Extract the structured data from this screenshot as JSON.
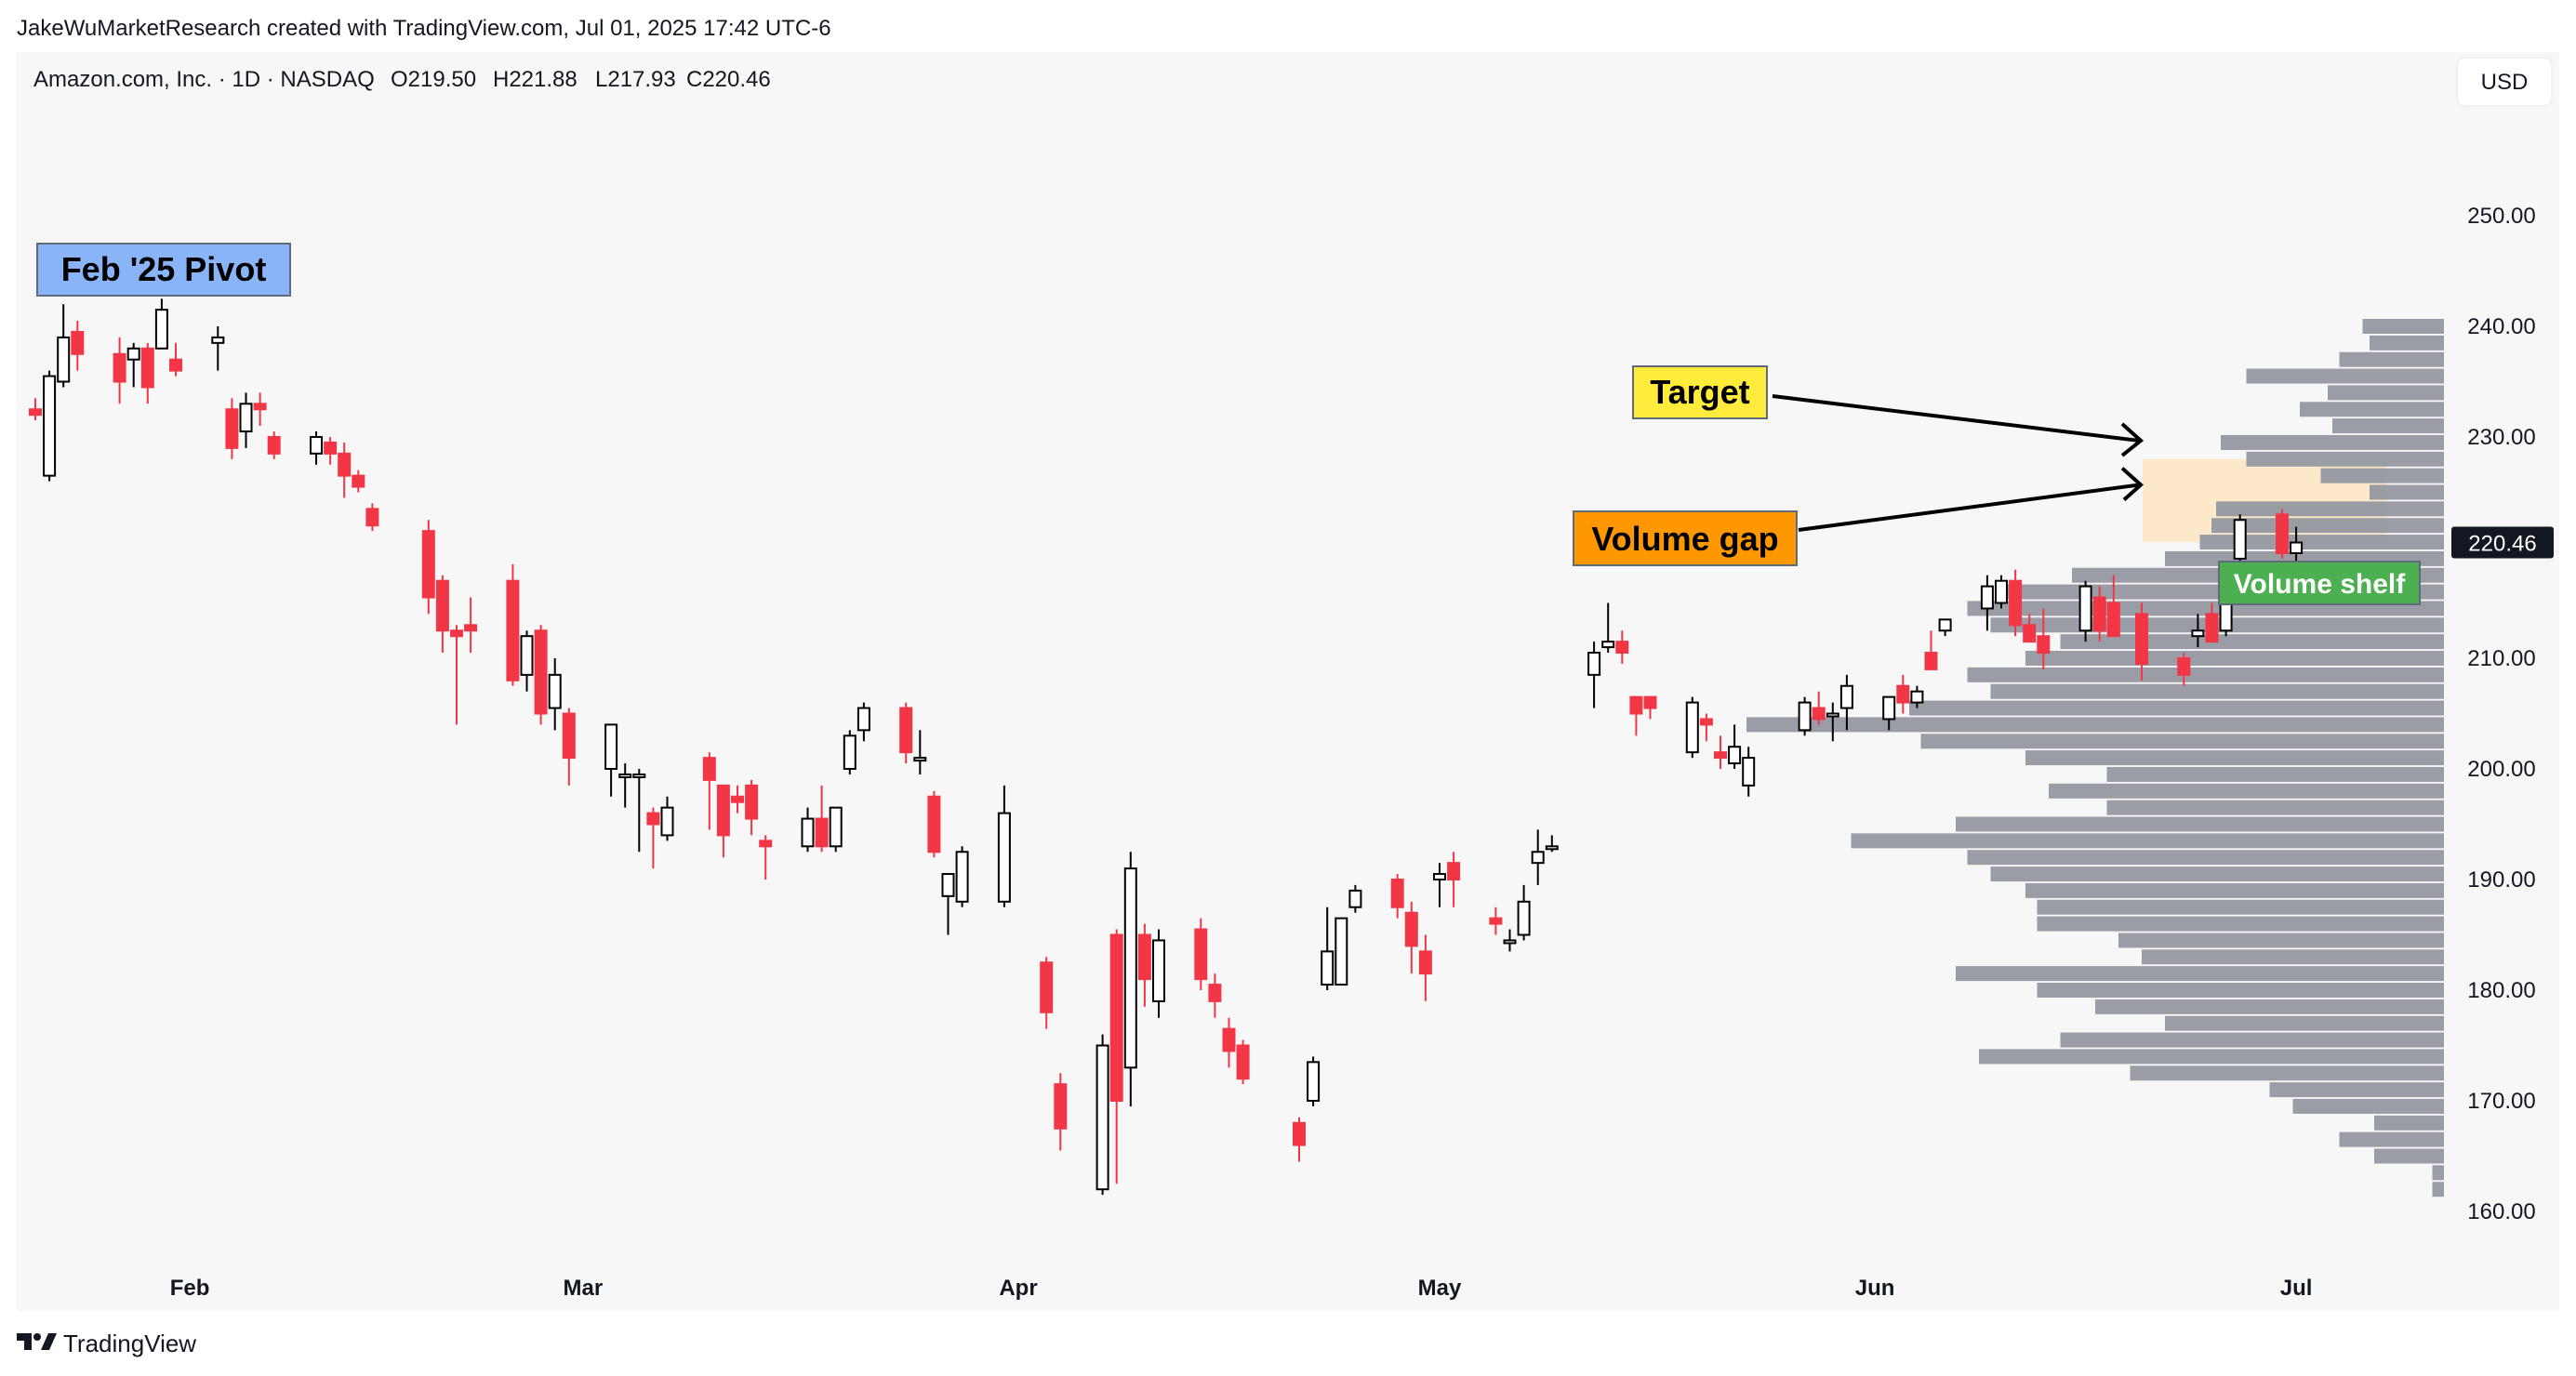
{
  "header": {
    "attribution": "JakeWuMarketResearch created with TradingView.com, Jul 01, 2025 17:42 UTC-6"
  },
  "legend": {
    "symbol_info": "Amazon.com, Inc. · 1D · NASDAQ",
    "open": "O219.50",
    "high": "H221.88",
    "low": "L217.93",
    "close": "C220.46"
  },
  "currency_button": "USD",
  "footer": {
    "brand": "TradingView"
  },
  "colors": {
    "up": "#000000",
    "down": "#f23645",
    "up_fill": "#ffffff",
    "volume_profile": "#9598a1",
    "pivot_label_bg": "#8ab4f8",
    "target_label_bg": "#ffeb3b",
    "gap_label_bg": "#ff9800",
    "shelf_label_bg": "#4caf50",
    "gap_zone": "#fde6c4",
    "price_tag_bg": "#131722"
  },
  "chart_data": {
    "type": "candlestick",
    "ticker": "AMZN",
    "y_axis": {
      "ticks": [
        160,
        170,
        180,
        190,
        200,
        210,
        220,
        230,
        240,
        250
      ],
      "tick_labels": [
        "160.00",
        "170.00",
        "180.00",
        "190.00",
        "200.00",
        "210.00",
        "220.00",
        "230.00",
        "240.00",
        "250.00"
      ],
      "range": [
        156,
        252
      ],
      "current_price": 220.46,
      "current_price_label": "220.46"
    },
    "x_axis": {
      "labels": [
        {
          "text": "Feb",
          "date": "2025-02-01"
        },
        {
          "text": "Mar",
          "date": "2025-03-01"
        },
        {
          "text": "Apr",
          "date": "2025-04-01"
        },
        {
          "text": "May",
          "date": "2025-05-01"
        },
        {
          "text": "Jun",
          "date": "2025-06-01"
        },
        {
          "text": "Jul",
          "date": "2025-07-01"
        }
      ]
    },
    "candles": [
      {
        "date": "2025-01-21",
        "o": 232.5,
        "h": 233.5,
        "l": 231.5,
        "c": 232.0
      },
      {
        "date": "2025-01-22",
        "o": 226.5,
        "h": 236.0,
        "l": 226.0,
        "c": 235.5
      },
      {
        "date": "2025-01-23",
        "o": 235.0,
        "h": 242.0,
        "l": 234.5,
        "c": 239.0
      },
      {
        "date": "2025-01-24",
        "o": 239.5,
        "h": 240.5,
        "l": 236.0,
        "c": 237.5
      },
      {
        "date": "2025-01-27",
        "o": 237.5,
        "h": 239.0,
        "l": 233.0,
        "c": 235.0
      },
      {
        "date": "2025-01-28",
        "o": 237.0,
        "h": 238.5,
        "l": 234.5,
        "c": 238.0
      },
      {
        "date": "2025-01-29",
        "o": 238.0,
        "h": 238.5,
        "l": 233.0,
        "c": 234.5
      },
      {
        "date": "2025-01-30",
        "o": 238.0,
        "h": 242.5,
        "l": 238.0,
        "c": 241.5
      },
      {
        "date": "2025-01-31",
        "o": 237.0,
        "h": 238.5,
        "l": 235.5,
        "c": 236.0
      },
      {
        "date": "2025-02-03",
        "o": 238.5,
        "h": 240.0,
        "l": 236.0,
        "c": 239.0
      },
      {
        "date": "2025-02-04",
        "o": 232.5,
        "h": 233.5,
        "l": 228.0,
        "c": 229.0
      },
      {
        "date": "2025-02-05",
        "o": 230.5,
        "h": 234.0,
        "l": 229.0,
        "c": 233.0
      },
      {
        "date": "2025-02-06",
        "o": 233.0,
        "h": 234.0,
        "l": 231.0,
        "c": 232.5
      },
      {
        "date": "2025-02-07",
        "o": 230.0,
        "h": 230.5,
        "l": 228.0,
        "c": 228.5
      },
      {
        "date": "2025-02-10",
        "o": 228.5,
        "h": 230.5,
        "l": 227.5,
        "c": 230.0
      },
      {
        "date": "2025-02-11",
        "o": 229.5,
        "h": 230.0,
        "l": 227.5,
        "c": 228.5
      },
      {
        "date": "2025-02-12",
        "o": 228.5,
        "h": 229.5,
        "l": 224.5,
        "c": 226.5
      },
      {
        "date": "2025-02-13",
        "o": 226.5,
        "h": 227.0,
        "l": 225.0,
        "c": 225.5
      },
      {
        "date": "2025-02-14",
        "o": 223.5,
        "h": 224.0,
        "l": 221.5,
        "c": 222.0
      },
      {
        "date": "2025-02-18",
        "o": 221.5,
        "h": 222.5,
        "l": 214.0,
        "c": 215.5
      },
      {
        "date": "2025-02-19",
        "o": 217.0,
        "h": 217.5,
        "l": 210.5,
        "c": 212.5
      },
      {
        "date": "2025-02-20",
        "o": 212.5,
        "h": 213.0,
        "l": 204.0,
        "c": 212.0
      },
      {
        "date": "2025-02-21",
        "o": 213.0,
        "h": 215.5,
        "l": 210.5,
        "c": 212.5
      },
      {
        "date": "2025-02-24",
        "o": 217.0,
        "h": 218.5,
        "l": 207.5,
        "c": 208.0
      },
      {
        "date": "2025-02-25",
        "o": 208.5,
        "h": 212.5,
        "l": 207.0,
        "c": 212.0
      },
      {
        "date": "2025-02-26",
        "o": 212.5,
        "h": 213.0,
        "l": 204.0,
        "c": 205.0
      },
      {
        "date": "2025-02-27",
        "o": 205.5,
        "h": 210.0,
        "l": 203.5,
        "c": 208.5
      },
      {
        "date": "2025-02-28",
        "o": 205.0,
        "h": 205.5,
        "l": 198.5,
        "c": 201.0
      },
      {
        "date": "2025-03-03",
        "o": 200.0,
        "h": 204.0,
        "l": 197.5,
        "c": 204.0
      },
      {
        "date": "2025-03-04",
        "o": 199.5,
        "h": 200.5,
        "l": 196.5,
        "c": 199.5
      },
      {
        "date": "2025-03-05",
        "o": 199.5,
        "h": 200.0,
        "l": 192.5,
        "c": 199.5
      },
      {
        "date": "2025-03-06",
        "o": 196.0,
        "h": 196.5,
        "l": 191.0,
        "c": 195.0
      },
      {
        "date": "2025-03-07",
        "o": 194.0,
        "h": 197.5,
        "l": 193.5,
        "c": 196.5
      },
      {
        "date": "2025-03-10",
        "o": 201.0,
        "h": 201.5,
        "l": 194.5,
        "c": 199.0
      },
      {
        "date": "2025-03-11",
        "o": 198.5,
        "h": 198.5,
        "l": 192.0,
        "c": 194.0
      },
      {
        "date": "2025-03-12",
        "o": 197.5,
        "h": 198.5,
        "l": 196.0,
        "c": 197.0
      },
      {
        "date": "2025-03-13",
        "o": 198.5,
        "h": 199.0,
        "l": 194.0,
        "c": 195.5
      },
      {
        "date": "2025-03-14",
        "o": 193.5,
        "h": 194.0,
        "l": 190.0,
        "c": 193.0
      },
      {
        "date": "2025-03-17",
        "o": 193.0,
        "h": 196.5,
        "l": 192.5,
        "c": 195.5
      },
      {
        "date": "2025-03-18",
        "o": 195.5,
        "h": 198.5,
        "l": 192.5,
        "c": 193.0
      },
      {
        "date": "2025-03-19",
        "o": 193.0,
        "h": 196.5,
        "l": 192.5,
        "c": 196.5
      },
      {
        "date": "2025-03-20",
        "o": 200.0,
        "h": 203.5,
        "l": 199.5,
        "c": 203.0
      },
      {
        "date": "2025-03-21",
        "o": 203.5,
        "h": 206.0,
        "l": 202.5,
        "c": 205.5
      },
      {
        "date": "2025-03-24",
        "o": 205.5,
        "h": 206.0,
        "l": 200.5,
        "c": 201.5
      },
      {
        "date": "2025-03-25",
        "o": 201.0,
        "h": 203.5,
        "l": 199.5,
        "c": 201.0
      },
      {
        "date": "2025-03-26",
        "o": 197.5,
        "h": 198.0,
        "l": 192.0,
        "c": 192.5
      },
      {
        "date": "2025-03-27",
        "o": 188.5,
        "h": 190.0,
        "l": 185.0,
        "c": 190.5
      },
      {
        "date": "2025-03-28",
        "o": 188.0,
        "h": 193.0,
        "l": 187.5,
        "c": 192.5
      },
      {
        "date": "2025-03-31",
        "o": 188.0,
        "h": 198.5,
        "l": 187.5,
        "c": 196.0
      },
      {
        "date": "2025-04-03",
        "o": 182.5,
        "h": 183.0,
        "l": 176.5,
        "c": 178.0
      },
      {
        "date": "2025-04-04",
        "o": 171.5,
        "h": 172.5,
        "l": 165.5,
        "c": 167.5
      },
      {
        "date": "2025-04-07",
        "o": 162.0,
        "h": 176.0,
        "l": 161.5,
        "c": 175.0
      },
      {
        "date": "2025-04-08",
        "o": 185.0,
        "h": 185.5,
        "l": 162.5,
        "c": 170.0
      },
      {
        "date": "2025-04-09",
        "o": 173.0,
        "h": 192.5,
        "l": 169.5,
        "c": 191.0
      },
      {
        "date": "2025-04-10",
        "o": 185.0,
        "h": 186.0,
        "l": 178.5,
        "c": 181.0
      },
      {
        "date": "2025-04-11",
        "o": 179.0,
        "h": 185.5,
        "l": 177.5,
        "c": 184.5
      },
      {
        "date": "2025-04-14",
        "o": 185.5,
        "h": 186.5,
        "l": 180.0,
        "c": 181.0
      },
      {
        "date": "2025-04-15",
        "o": 180.5,
        "h": 181.5,
        "l": 177.5,
        "c": 179.0
      },
      {
        "date": "2025-04-16",
        "o": 176.5,
        "h": 177.5,
        "l": 173.0,
        "c": 174.5
      },
      {
        "date": "2025-04-17",
        "o": 175.0,
        "h": 175.5,
        "l": 171.5,
        "c": 172.0
      },
      {
        "date": "2025-04-21",
        "o": 168.0,
        "h": 168.5,
        "l": 164.5,
        "c": 166.0
      },
      {
        "date": "2025-04-22",
        "o": 170.0,
        "h": 174.0,
        "l": 169.5,
        "c": 173.5
      },
      {
        "date": "2025-04-23",
        "o": 180.5,
        "h": 187.5,
        "l": 180.0,
        "c": 183.5
      },
      {
        "date": "2025-04-24",
        "o": 180.5,
        "h": 186.5,
        "l": 180.5,
        "c": 186.5
      },
      {
        "date": "2025-04-25",
        "o": 187.5,
        "h": 189.5,
        "l": 187.0,
        "c": 189.0
      },
      {
        "date": "2025-04-28",
        "o": 190.0,
        "h": 190.5,
        "l": 186.5,
        "c": 187.5
      },
      {
        "date": "2025-04-29",
        "o": 187.0,
        "h": 188.0,
        "l": 181.5,
        "c": 184.0
      },
      {
        "date": "2025-04-30",
        "o": 183.5,
        "h": 185.0,
        "l": 179.0,
        "c": 181.5
      },
      {
        "date": "2025-05-01",
        "o": 190.0,
        "h": 191.5,
        "l": 187.5,
        "c": 190.5
      },
      {
        "date": "2025-05-02",
        "o": 191.5,
        "h": 192.5,
        "l": 187.5,
        "c": 190.0
      },
      {
        "date": "2025-05-05",
        "o": 186.5,
        "h": 187.5,
        "l": 185.0,
        "c": 186.0
      },
      {
        "date": "2025-05-06",
        "o": 184.5,
        "h": 185.5,
        "l": 183.5,
        "c": 184.5
      },
      {
        "date": "2025-05-07",
        "o": 185.0,
        "h": 189.5,
        "l": 184.5,
        "c": 188.0
      },
      {
        "date": "2025-05-08",
        "o": 191.5,
        "h": 194.5,
        "l": 189.5,
        "c": 192.5
      },
      {
        "date": "2025-05-09",
        "o": 193.0,
        "h": 194.0,
        "l": 192.5,
        "c": 193.0
      },
      {
        "date": "2025-05-12",
        "o": 208.5,
        "h": 211.5,
        "l": 205.5,
        "c": 210.5
      },
      {
        "date": "2025-05-13",
        "o": 211.0,
        "h": 215.0,
        "l": 210.5,
        "c": 211.5
      },
      {
        "date": "2025-05-14",
        "o": 211.5,
        "h": 212.5,
        "l": 209.5,
        "c": 210.5
      },
      {
        "date": "2025-05-15",
        "o": 206.5,
        "h": 206.5,
        "l": 203.0,
        "c": 205.0
      },
      {
        "date": "2025-05-16",
        "o": 206.5,
        "h": 206.5,
        "l": 204.5,
        "c": 205.5
      },
      {
        "date": "2025-05-19",
        "o": 201.5,
        "h": 206.5,
        "l": 201.0,
        "c": 206.0
      },
      {
        "date": "2025-05-20",
        "o": 204.5,
        "h": 205.0,
        "l": 202.5,
        "c": 204.0
      },
      {
        "date": "2025-05-21",
        "o": 201.5,
        "h": 203.0,
        "l": 200.0,
        "c": 201.0
      },
      {
        "date": "2025-05-22",
        "o": 200.5,
        "h": 204.0,
        "l": 200.0,
        "c": 202.0
      },
      {
        "date": "2025-05-23",
        "o": 198.5,
        "h": 202.0,
        "l": 197.5,
        "c": 201.0
      },
      {
        "date": "2025-05-27",
        "o": 203.5,
        "h": 206.5,
        "l": 203.0,
        "c": 206.0
      },
      {
        "date": "2025-05-28",
        "o": 205.5,
        "h": 207.0,
        "l": 204.0,
        "c": 204.5
      },
      {
        "date": "2025-05-29",
        "o": 205.0,
        "h": 206.0,
        "l": 202.5,
        "c": 205.0
      },
      {
        "date": "2025-05-30",
        "o": 205.5,
        "h": 208.5,
        "l": 203.5,
        "c": 207.5
      },
      {
        "date": "2025-06-02",
        "o": 204.5,
        "h": 206.5,
        "l": 203.5,
        "c": 206.5
      },
      {
        "date": "2025-06-03",
        "o": 207.5,
        "h": 208.5,
        "l": 205.0,
        "c": 206.0
      },
      {
        "date": "2025-06-04",
        "o": 206.0,
        "h": 207.5,
        "l": 205.5,
        "c": 207.0
      },
      {
        "date": "2025-06-05",
        "o": 210.5,
        "h": 212.5,
        "l": 209.0,
        "c": 209.0
      },
      {
        "date": "2025-06-06",
        "o": 212.5,
        "h": 213.5,
        "l": 212.0,
        "c": 213.5
      },
      {
        "date": "2025-06-09",
        "o": 214.5,
        "h": 217.5,
        "l": 212.5,
        "c": 216.5
      },
      {
        "date": "2025-06-10",
        "o": 215.0,
        "h": 217.5,
        "l": 214.5,
        "c": 217.0
      },
      {
        "date": "2025-06-11",
        "o": 217.0,
        "h": 218.0,
        "l": 212.0,
        "c": 213.0
      },
      {
        "date": "2025-06-12",
        "o": 213.0,
        "h": 214.0,
        "l": 211.5,
        "c": 211.5
      },
      {
        "date": "2025-06-13",
        "o": 212.0,
        "h": 214.5,
        "l": 209.0,
        "c": 210.5
      },
      {
        "date": "2025-06-16",
        "o": 212.5,
        "h": 217.0,
        "l": 211.5,
        "c": 216.5
      },
      {
        "date": "2025-06-17",
        "o": 215.5,
        "h": 216.5,
        "l": 211.5,
        "c": 212.5
      },
      {
        "date": "2025-06-18",
        "o": 215.0,
        "h": 217.5,
        "l": 212.0,
        "c": 212.0
      },
      {
        "date": "2025-06-20",
        "o": 214.0,
        "h": 215.0,
        "l": 208.0,
        "c": 209.5
      },
      {
        "date": "2025-06-23",
        "o": 210.0,
        "h": 210.5,
        "l": 207.5,
        "c": 208.5
      },
      {
        "date": "2025-06-24",
        "o": 212.0,
        "h": 214.0,
        "l": 211.0,
        "c": 212.5
      },
      {
        "date": "2025-06-25",
        "o": 214.0,
        "h": 215.0,
        "l": 211.5,
        "c": 211.5
      },
      {
        "date": "2025-06-26",
        "o": 212.5,
        "h": 217.5,
        "l": 212.0,
        "c": 217.0
      },
      {
        "date": "2025-06-27",
        "o": 219.0,
        "h": 223.0,
        "l": 216.5,
        "c": 222.5
      },
      {
        "date": "2025-06-30",
        "o": 223.0,
        "h": 223.5,
        "l": 219.0,
        "c": 219.5
      },
      {
        "date": "2025-07-01",
        "o": 219.5,
        "h": 221.88,
        "l": 217.93,
        "c": 220.46
      }
    ],
    "volume_profile": [
      {
        "price": 240,
        "rel": 0.35
      },
      {
        "price": 238.5,
        "rel": 0.32
      },
      {
        "price": 237,
        "rel": 0.45
      },
      {
        "price": 235.5,
        "rel": 0.85
      },
      {
        "price": 234,
        "rel": 0.5
      },
      {
        "price": 232.5,
        "rel": 0.62
      },
      {
        "price": 231,
        "rel": 0.48
      },
      {
        "price": 229.5,
        "rel": 0.96
      },
      {
        "price": 228,
        "rel": 0.85
      },
      {
        "price": 226.5,
        "rel": 0.53
      },
      {
        "price": 225,
        "rel": 0.32
      },
      {
        "price": 223.5,
        "rel": 0.98
      },
      {
        "price": 222,
        "rel": 1.0
      },
      {
        "price": 220.5,
        "rel": 1.05
      },
      {
        "price": 219,
        "rel": 1.2
      },
      {
        "price": 217.5,
        "rel": 1.6
      },
      {
        "price": 216,
        "rel": 1.9
      },
      {
        "price": 214.5,
        "rel": 2.05
      },
      {
        "price": 213,
        "rel": 1.95
      },
      {
        "price": 211.5,
        "rel": 1.65
      },
      {
        "price": 210,
        "rel": 1.8
      },
      {
        "price": 208.5,
        "rel": 2.05
      },
      {
        "price": 207,
        "rel": 1.95
      },
      {
        "price": 205.5,
        "rel": 2.3
      },
      {
        "price": 204,
        "rel": 3.0
      },
      {
        "price": 202.5,
        "rel": 2.25
      },
      {
        "price": 201,
        "rel": 1.8
      },
      {
        "price": 199.5,
        "rel": 1.45
      },
      {
        "price": 198,
        "rel": 1.7
      },
      {
        "price": 196.5,
        "rel": 1.45
      },
      {
        "price": 195,
        "rel": 2.1
      },
      {
        "price": 193.5,
        "rel": 2.55
      },
      {
        "price": 192,
        "rel": 2.05
      },
      {
        "price": 190.5,
        "rel": 1.95
      },
      {
        "price": 189,
        "rel": 1.8
      },
      {
        "price": 187.5,
        "rel": 1.75
      },
      {
        "price": 186,
        "rel": 1.75
      },
      {
        "price": 184.5,
        "rel": 1.4
      },
      {
        "price": 183,
        "rel": 1.3
      },
      {
        "price": 181.5,
        "rel": 2.1
      },
      {
        "price": 180,
        "rel": 1.75
      },
      {
        "price": 178.5,
        "rel": 1.5
      },
      {
        "price": 177,
        "rel": 1.2
      },
      {
        "price": 175.5,
        "rel": 1.65
      },
      {
        "price": 174,
        "rel": 2.0
      },
      {
        "price": 172.5,
        "rel": 1.35
      },
      {
        "price": 171,
        "rel": 0.75
      },
      {
        "price": 169.5,
        "rel": 0.65
      },
      {
        "price": 168,
        "rel": 0.3
      },
      {
        "price": 166.5,
        "rel": 0.45
      },
      {
        "price": 165,
        "rel": 0.3
      },
      {
        "price": 163.5,
        "rel": 0.05
      },
      {
        "price": 162,
        "rel": 0.05
      }
    ],
    "annotations": {
      "pivot_label": "Feb '25 Pivot",
      "target_label": "Target",
      "gap_label": "Volume gap",
      "shelf_label": "Volume shelf",
      "target_price": 229.5,
      "gap_price": 225.5,
      "gap_zone": [
        220.5,
        228
      ]
    }
  }
}
